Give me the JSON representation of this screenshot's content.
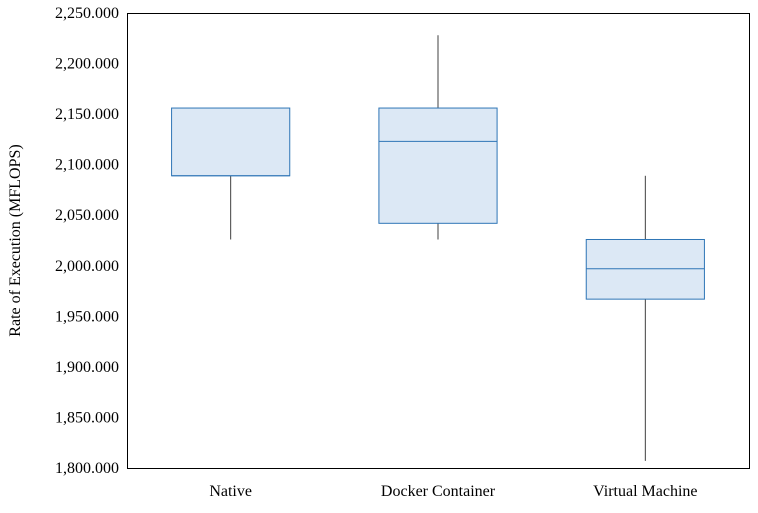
{
  "chart_data": {
    "type": "boxplot",
    "title": "",
    "xlabel": "",
    "ylabel": "Rate of Execution (MFLOPS)",
    "ylim": [
      1800,
      2250
    ],
    "yticks": [
      1800,
      1850,
      1900,
      1950,
      2000,
      2050,
      2100,
      2150,
      2200,
      2250
    ],
    "ytick_labels": [
      "1,800.000",
      "1,850.000",
      "1,900.000",
      "1,950.000",
      "2,000.000",
      "2,050.000",
      "2,100.000",
      "2,150.000",
      "2,200.000",
      "2,250.000"
    ],
    "grid": false,
    "box_fill": "#dce8f5",
    "box_stroke": "#2e75b6",
    "whisker_color": "#404040",
    "categories": [
      "Native",
      "Docker Container",
      "Virtual Machine"
    ],
    "boxes": [
      {
        "label": "Native",
        "whisker_low": 2026,
        "q1": 2089,
        "median": 2089,
        "q3": 2156,
        "whisker_high": 2156
      },
      {
        "label": "Docker Container",
        "whisker_low": 2026,
        "q1": 2042,
        "median": 2123,
        "q3": 2156,
        "whisker_high": 2228
      },
      {
        "label": "Virtual Machine",
        "whisker_low": 1807,
        "q1": 1967,
        "median": 1997,
        "q3": 2026,
        "whisker_high": 2089
      }
    ]
  }
}
